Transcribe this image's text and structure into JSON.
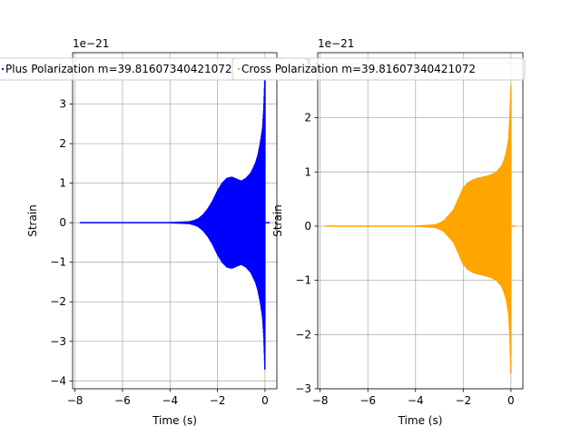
{
  "chart_data": [
    {
      "type": "line",
      "title": "",
      "xlabel": "Time (s)",
      "ylabel": "Strain",
      "xlim": [
        -8.1,
        0.5
      ],
      "ylim": [
        -4.2,
        4.3
      ],
      "xticks": [
        -8,
        -6,
        -4,
        -2,
        0
      ],
      "xtick_labels": [
        "−8",
        "−6",
        "−4",
        "−2",
        "0"
      ],
      "yticks": [
        -4,
        -3,
        -2,
        -1,
        0,
        1,
        2,
        3
      ],
      "ytick_labels": [
        "−4",
        "−3",
        "−2",
        "−1",
        "0",
        "1",
        "2",
        "3"
      ],
      "offset_text": "1e−21",
      "grid": true,
      "legend": "upper-left",
      "series": [
        {
          "name": "Plus Polarization m=39.81607340421072",
          "color": "#0000ff",
          "envelope": {
            "t": [
              -7.8,
              -6.0,
              -4.0,
              -3.2,
              -3.0,
              -2.8,
              -2.6,
              -2.4,
              -2.2,
              -2.0,
              -1.8,
              -1.6,
              -1.4,
              -1.2,
              -1.0,
              -0.8,
              -0.6,
              -0.4,
              -0.3,
              -0.2,
              -0.1,
              -0.05,
              0.0
            ],
            "upper": [
              0.0,
              0.0,
              0.0,
              0.02,
              0.05,
              0.1,
              0.2,
              0.35,
              0.55,
              0.8,
              1.0,
              1.12,
              1.15,
              1.1,
              1.05,
              1.12,
              1.25,
              1.5,
              1.7,
              2.0,
              2.4,
              2.9,
              3.8
            ],
            "lower": [
              0.0,
              0.0,
              0.0,
              -0.02,
              -0.05,
              -0.1,
              -0.2,
              -0.35,
              -0.55,
              -0.8,
              -1.0,
              -1.12,
              -1.15,
              -1.1,
              -1.05,
              -1.12,
              -1.25,
              -1.5,
              -1.7,
              -2.0,
              -2.4,
              -2.9,
              -3.8
            ]
          }
        }
      ]
    },
    {
      "type": "line",
      "title": "",
      "xlabel": "Time (s)",
      "ylabel": "Strain",
      "xlim": [
        -8.1,
        0.5
      ],
      "ylim": [
        -3.0,
        3.2
      ],
      "xticks": [
        -8,
        -6,
        -4,
        -2,
        0
      ],
      "xtick_labels": [
        "−8",
        "−6",
        "−4",
        "−2",
        "0"
      ],
      "yticks": [
        -3,
        -2,
        -1,
        0,
        1,
        2,
        3
      ],
      "ytick_labels": [
        "−3",
        "−2",
        "−1",
        "0",
        "1",
        "2",
        "3"
      ],
      "offset_text": "1e−21",
      "grid": true,
      "legend": "upper-left",
      "series": [
        {
          "name": "Cross Polarization m=39.81607340421072",
          "color": "#ffa500",
          "envelope": {
            "t": [
              -7.8,
              -6.0,
              -4.0,
              -3.2,
              -3.0,
              -2.8,
              -2.6,
              -2.4,
              -2.2,
              -2.0,
              -1.8,
              -1.6,
              -1.4,
              -1.2,
              -1.0,
              -0.8,
              -0.6,
              -0.4,
              -0.3,
              -0.2,
              -0.1,
              -0.05,
              0.0
            ],
            "upper": [
              0.0,
              0.0,
              0.0,
              0.02,
              0.05,
              0.1,
              0.2,
              0.3,
              0.5,
              0.7,
              0.8,
              0.85,
              0.88,
              0.9,
              0.92,
              0.95,
              1.0,
              1.1,
              1.2,
              1.35,
              1.6,
              2.0,
              2.6
            ],
            "lower": [
              0.0,
              0.0,
              0.0,
              -0.02,
              -0.05,
              -0.1,
              -0.2,
              -0.3,
              -0.5,
              -0.7,
              -0.8,
              -0.85,
              -0.88,
              -0.9,
              -0.92,
              -0.95,
              -1.0,
              -1.1,
              -1.2,
              -1.35,
              -1.6,
              -2.0,
              -2.8
            ]
          }
        }
      ]
    }
  ]
}
